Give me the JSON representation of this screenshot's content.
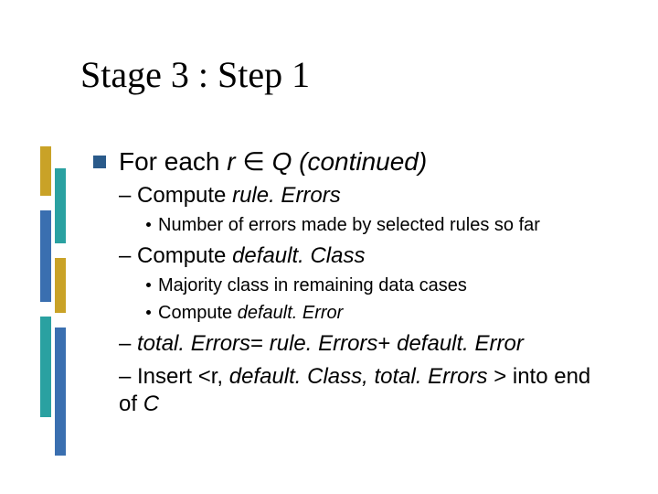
{
  "colors": {
    "text": "#000000",
    "bullet_square": "#2a5a8a",
    "bullet_dot": "#000000",
    "decor_gold": "#c9a227",
    "decor_teal": "#2aa1a1",
    "decor_blue": "#3a6fb0",
    "decor_white": "#ffffff",
    "background": "#ffffff"
  },
  "title": {
    "text": "Stage 3 : Step 1",
    "style": "font-size:40px; color:#000000;"
  },
  "bullets": {
    "square_style": "background:#2a5a8a;",
    "dot_style": "background:#000000;"
  },
  "body": {
    "lvl1_style": "font-size:28px; color:#000000;",
    "lvl2_style": "font-size:24px; color:#000000; line-height:1.25;",
    "lvl3_style": "font-size:20px; color:#000000; line-height:1.3;",
    "l1": {
      "part1": "For each ",
      "part2": "r ",
      "part3": "∈ ",
      "part4": "Q (continued)"
    },
    "l2a": {
      "dash": "– ",
      "p1": "Compute ",
      "p2": "rule. Errors"
    },
    "l3a": "Number of errors made by selected rules so far",
    "l2b": {
      "dash": "– ",
      "p1": "Compute ",
      "p2": "default. Class"
    },
    "l3b": "Majority class in remaining data cases",
    "l3c": {
      "p1": "Compute ",
      "p2": "default. Error"
    },
    "l2c": {
      "dash": "– ",
      "p1": "total. Errors",
      "p2": "= ",
      "p3": "rule. Errors",
      "p4": "+ ",
      "p5": "default. Error"
    },
    "l2d": {
      "dash": "– ",
      "p1": "Insert <r, ",
      "p2": "default. Class, total. Errors ",
      "p3": "> into end of ",
      "p4": "C"
    }
  },
  "decor": {
    "bars": [
      {
        "style": "left:0px;  top:0px;   height:54px; background:#c9a227;"
      },
      {
        "style": "left:16px; top:24px;  height:82px; background:#2aa1a1;"
      },
      {
        "style": "left:0px;  top:70px;  height:100px; background:#3a6fb0;"
      },
      {
        "style": "left:16px; top:122px; height:60px; background:#c9a227;"
      },
      {
        "style": "left:0px;  top:186px; height:110px; background:#2aa1a1;"
      },
      {
        "style": "left:16px; top:198px; height:140px; background:#3a6fb0;"
      }
    ]
  }
}
